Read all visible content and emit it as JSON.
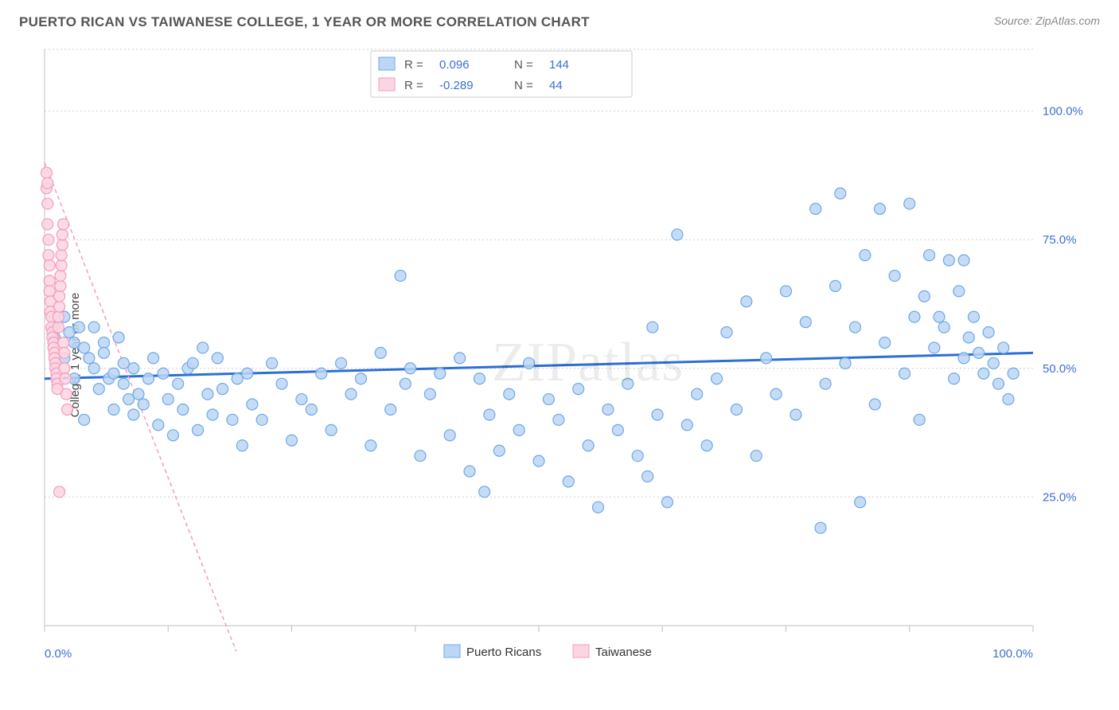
{
  "header": {
    "title": "PUERTO RICAN VS TAIWANESE COLLEGE, 1 YEAR OR MORE CORRELATION CHART",
    "source_label": "Source: ZipAtlas.com"
  },
  "ylabel": "College, 1 year or more",
  "watermark": "ZIPatlas",
  "chart": {
    "type": "scatter",
    "background_color": "#ffffff",
    "grid_color": "#cfcfcf",
    "axis_color": "#bfbfbf",
    "tick_label_color": "#3b6fd6",
    "xlim": [
      0,
      100
    ],
    "ylim": [
      0,
      112
    ],
    "y_gridlines": [
      25,
      50,
      75,
      100,
      112
    ],
    "y_tick_labels": [
      {
        "v": 25,
        "label": "25.0%"
      },
      {
        "v": 50,
        "label": "50.0%"
      },
      {
        "v": 75,
        "label": "75.0%"
      },
      {
        "v": 100,
        "label": "100.0%"
      }
    ],
    "x_ticks": [
      0,
      12.5,
      25,
      37.5,
      50,
      62.5,
      75,
      87.5,
      100
    ],
    "x_tick_labels": [
      {
        "v": 0,
        "label": "0.0%"
      },
      {
        "v": 100,
        "label": "100.0%"
      }
    ],
    "marker_radius": 7,
    "marker_stroke_width": 1.2,
    "series": [
      {
        "name": "Puerto Ricans",
        "fill": "#bcd6f5",
        "stroke": "#6ca9e6",
        "trend_color": "#2b6fd6",
        "trend_style": "solid",
        "trend_y_at_x0": 48,
        "trend_y_at_x100": 53,
        "R": "0.096",
        "N": "144",
        "points": [
          [
            1,
            56
          ],
          [
            1,
            58
          ],
          [
            2,
            52
          ],
          [
            2,
            60
          ],
          [
            2.5,
            57
          ],
          [
            3,
            48
          ],
          [
            3,
            55
          ],
          [
            3.5,
            58
          ],
          [
            4,
            40
          ],
          [
            4,
            54
          ],
          [
            4.5,
            52
          ],
          [
            5,
            58
          ],
          [
            5,
            50
          ],
          [
            5.5,
            46
          ],
          [
            6,
            55
          ],
          [
            6,
            53
          ],
          [
            6.5,
            48
          ],
          [
            7,
            49
          ],
          [
            7,
            42
          ],
          [
            7.5,
            56
          ],
          [
            8,
            51
          ],
          [
            8,
            47
          ],
          [
            8.5,
            44
          ],
          [
            9,
            50
          ],
          [
            9,
            41
          ],
          [
            9.5,
            45
          ],
          [
            10,
            43
          ],
          [
            10.5,
            48
          ],
          [
            11,
            52
          ],
          [
            11.5,
            39
          ],
          [
            12,
            49
          ],
          [
            12.5,
            44
          ],
          [
            13,
            37
          ],
          [
            13.5,
            47
          ],
          [
            14,
            42
          ],
          [
            14.5,
            50
          ],
          [
            15,
            51
          ],
          [
            15.5,
            38
          ],
          [
            16,
            54
          ],
          [
            16.5,
            45
          ],
          [
            17,
            41
          ],
          [
            17.5,
            52
          ],
          [
            18,
            46
          ],
          [
            19,
            40
          ],
          [
            19.5,
            48
          ],
          [
            20,
            35
          ],
          [
            20.5,
            49
          ],
          [
            21,
            43
          ],
          [
            22,
            40
          ],
          [
            23,
            51
          ],
          [
            24,
            47
          ],
          [
            25,
            36
          ],
          [
            26,
            44
          ],
          [
            27,
            42
          ],
          [
            28,
            49
          ],
          [
            29,
            38
          ],
          [
            30,
            51
          ],
          [
            31,
            45
          ],
          [
            32,
            48
          ],
          [
            33,
            35
          ],
          [
            34,
            53
          ],
          [
            35,
            42
          ],
          [
            36,
            68
          ],
          [
            36.5,
            47
          ],
          [
            37,
            50
          ],
          [
            38,
            33
          ],
          [
            39,
            45
          ],
          [
            40,
            49
          ],
          [
            41,
            37
          ],
          [
            42,
            52
          ],
          [
            43,
            30
          ],
          [
            44,
            48
          ],
          [
            44.5,
            26
          ],
          [
            45,
            41
          ],
          [
            46,
            34
          ],
          [
            47,
            45
          ],
          [
            48,
            38
          ],
          [
            49,
            51
          ],
          [
            50,
            32
          ],
          [
            51,
            44
          ],
          [
            52,
            40
          ],
          [
            53,
            28
          ],
          [
            54,
            46
          ],
          [
            55,
            35
          ],
          [
            56,
            23
          ],
          [
            57,
            42
          ],
          [
            58,
            38
          ],
          [
            59,
            47
          ],
          [
            60,
            33
          ],
          [
            61,
            29
          ],
          [
            61.5,
            58
          ],
          [
            62,
            41
          ],
          [
            63,
            24
          ],
          [
            64,
            76
          ],
          [
            65,
            39
          ],
          [
            66,
            45
          ],
          [
            67,
            35
          ],
          [
            68,
            48
          ],
          [
            69,
            57
          ],
          [
            70,
            42
          ],
          [
            71,
            63
          ],
          [
            72,
            33
          ],
          [
            73,
            52
          ],
          [
            74,
            45
          ],
          [
            75,
            65
          ],
          [
            76,
            41
          ],
          [
            77,
            59
          ],
          [
            78,
            81
          ],
          [
            78.5,
            19
          ],
          [
            79,
            47
          ],
          [
            80,
            66
          ],
          [
            80.5,
            84
          ],
          [
            81,
            51
          ],
          [
            82,
            58
          ],
          [
            82.5,
            24
          ],
          [
            83,
            72
          ],
          [
            84,
            43
          ],
          [
            84.5,
            81
          ],
          [
            85,
            55
          ],
          [
            86,
            68
          ],
          [
            87,
            49
          ],
          [
            87.5,
            82
          ],
          [
            88,
            60
          ],
          [
            88.5,
            40
          ],
          [
            89,
            64
          ],
          [
            89.5,
            72
          ],
          [
            90,
            54
          ],
          [
            90.5,
            60
          ],
          [
            91,
            58
          ],
          [
            91.5,
            71
          ],
          [
            92,
            48
          ],
          [
            92.5,
            65
          ],
          [
            93,
            52
          ],
          [
            93,
            71
          ],
          [
            93.5,
            56
          ],
          [
            94,
            60
          ],
          [
            94.5,
            53
          ],
          [
            95,
            49
          ],
          [
            95.5,
            57
          ],
          [
            96,
            51
          ],
          [
            96.5,
            47
          ],
          [
            97,
            54
          ],
          [
            97.5,
            44
          ],
          [
            98,
            49
          ]
        ]
      },
      {
        "name": "Taiwanese",
        "fill": "#fcd5e2",
        "stroke": "#f59bb9",
        "trend_color": "#f59bb9",
        "trend_style": "dashed",
        "trend_y_at_x0": 90,
        "trend_y_at_x100": -400,
        "R": "-0.289",
        "N": "44",
        "points": [
          [
            0.2,
            85
          ],
          [
            0.3,
            82
          ],
          [
            0.3,
            78
          ],
          [
            0.4,
            75
          ],
          [
            0.4,
            72
          ],
          [
            0.5,
            70
          ],
          [
            0.5,
            67
          ],
          [
            0.5,
            65
          ],
          [
            0.6,
            63
          ],
          [
            0.6,
            61
          ],
          [
            0.7,
            60
          ],
          [
            0.7,
            58
          ],
          [
            0.8,
            57
          ],
          [
            0.8,
            56
          ],
          [
            0.9,
            55
          ],
          [
            0.9,
            54
          ],
          [
            1.0,
            53
          ],
          [
            1.0,
            52
          ],
          [
            1.1,
            51
          ],
          [
            1.1,
            50
          ],
          [
            1.2,
            49
          ],
          [
            1.2,
            48
          ],
          [
            1.3,
            47
          ],
          [
            1.3,
            46
          ],
          [
            1.4,
            58
          ],
          [
            1.4,
            60
          ],
          [
            1.5,
            62
          ],
          [
            1.5,
            64
          ],
          [
            1.6,
            66
          ],
          [
            1.6,
            68
          ],
          [
            1.7,
            70
          ],
          [
            1.7,
            72
          ],
          [
            1.8,
            74
          ],
          [
            1.8,
            76
          ],
          [
            1.9,
            78
          ],
          [
            1.9,
            55
          ],
          [
            2.0,
            53
          ],
          [
            2.0,
            50
          ],
          [
            2.1,
            48
          ],
          [
            2.2,
            45
          ],
          [
            2.3,
            42
          ],
          [
            1.5,
            26
          ],
          [
            0.2,
            88
          ],
          [
            0.3,
            86
          ]
        ]
      }
    ],
    "legend_top": {
      "swatch_stroke": "#ccc",
      "label_color_key": "#555",
      "label_color_val": "#3b6fd6"
    },
    "legend_bottom": {
      "items": [
        {
          "label": "Puerto Ricans",
          "fill": "#bcd6f5",
          "stroke": "#6ca9e6"
        },
        {
          "label": "Taiwanese",
          "fill": "#fcd5e2",
          "stroke": "#f59bb9"
        }
      ]
    }
  }
}
